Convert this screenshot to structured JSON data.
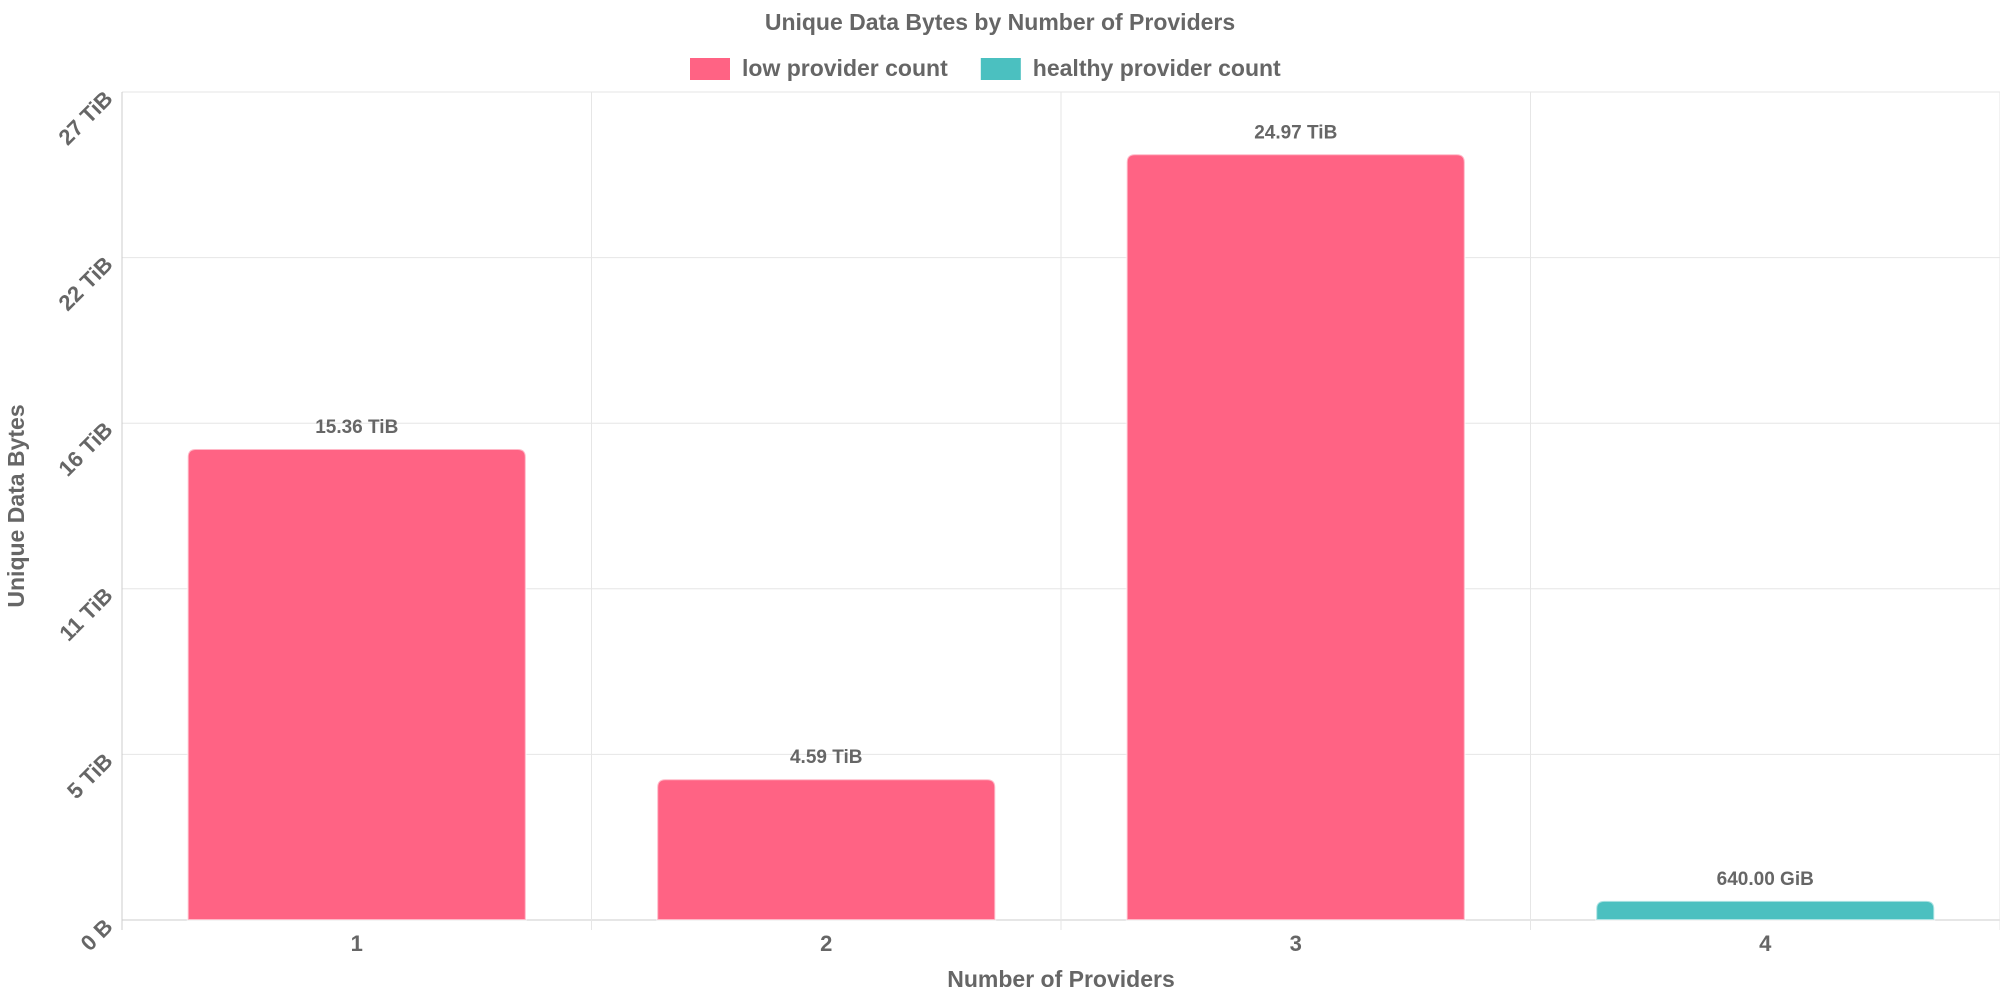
{
  "chart_data": {
    "type": "bar",
    "title": "Unique Data Bytes by Number of Providers",
    "xlabel": "Number of Providers",
    "ylabel": "Unique Data Bytes",
    "categories": [
      "1",
      "2",
      "3",
      "4"
    ],
    "values_tib": [
      15.36,
      4.59,
      24.97,
      0.625
    ],
    "data_labels": [
      "15.36 TiB",
      "4.59 TiB",
      "24.97 TiB",
      "640.00 GiB"
    ],
    "bar_series": [
      "low provider count",
      "low provider count",
      "low provider count",
      "healthy provider count"
    ],
    "legend": [
      {
        "name": "low provider count",
        "color": "#ff6384"
      },
      {
        "name": "healthy provider count",
        "color": "#4bc0c0"
      }
    ],
    "legend_position": "top",
    "y_ticks": [
      {
        "value": 0,
        "label": "0 B"
      },
      {
        "value": 5.4,
        "label": "5 TiB"
      },
      {
        "value": 10.8,
        "label": "11 TiB"
      },
      {
        "value": 16.2,
        "label": "16 TiB"
      },
      {
        "value": 21.6,
        "label": "22 TiB"
      },
      {
        "value": 27,
        "label": "27 TiB"
      }
    ],
    "ylim": [
      0,
      27
    ],
    "grid": true
  }
}
